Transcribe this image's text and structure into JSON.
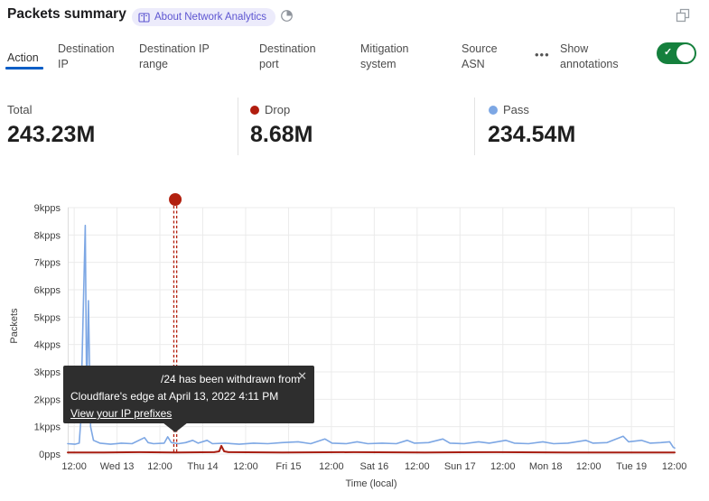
{
  "header": {
    "title": "Packets summary",
    "badge_label": "About Network Analytics"
  },
  "icons": {
    "more_tabs": "•••",
    "close": "✕",
    "check": "✓"
  },
  "tabs": [
    {
      "label": "Action",
      "active": true
    },
    {
      "label": "Destination IP",
      "active": false
    },
    {
      "label": "Destination IP range",
      "active": false
    },
    {
      "label": "Destination port",
      "active": false
    },
    {
      "label": "Mitigation system",
      "active": false
    },
    {
      "label": "Source ASN",
      "active": false
    }
  ],
  "annotations_toggle": {
    "label": "Show annotations",
    "on": true
  },
  "stats": [
    {
      "label": "Total",
      "value": "243.23M",
      "dot_color": null
    },
    {
      "label": "Drop",
      "value": "8.68M",
      "dot_color": "#b11d0f"
    },
    {
      "label": "Pass",
      "value": "234.54M",
      "dot_color": "#7da7e4"
    }
  ],
  "colors": {
    "accent_blue_underline": "#0b5ec6",
    "toggle_green": "#15803d",
    "pass_line": "#7da7e4",
    "drop_line": "#a81e12",
    "annotation_red": "#b2200f",
    "badge_purple": "#5d55d1",
    "gridline": "#ebebeb"
  },
  "chart_data": {
    "type": "line",
    "title": "Packets summary",
    "xlabel": "Time (local)",
    "ylabel": "Packets",
    "y_unit": "kpps",
    "ylim": [
      0,
      9
    ],
    "xlim_hours": [
      0,
      169.9
    ],
    "grid": true,
    "legend_position": "top-stats",
    "y_ticks": [
      {
        "label": "0pps",
        "value": 0
      },
      {
        "label": "1kpps",
        "value": 1
      },
      {
        "label": "2kpps",
        "value": 2
      },
      {
        "label": "3kpps",
        "value": 3
      },
      {
        "label": "4kpps",
        "value": 4
      },
      {
        "label": "5kpps",
        "value": 5
      },
      {
        "label": "6kpps",
        "value": 6
      },
      {
        "label": "7kpps",
        "value": 7
      },
      {
        "label": "8kpps",
        "value": 8
      },
      {
        "label": "9kpps",
        "value": 9
      }
    ],
    "x_ticks": [
      {
        "label": "12:00",
        "hour": 1.8
      },
      {
        "label": "Wed 13",
        "hour": 13.8
      },
      {
        "label": "12:00",
        "hour": 25.8
      },
      {
        "label": "Thu 14",
        "hour": 37.8
      },
      {
        "label": "12:00",
        "hour": 49.8
      },
      {
        "label": "Fri 15",
        "hour": 61.8
      },
      {
        "label": "12:00",
        "hour": 73.8
      },
      {
        "label": "Sat 16",
        "hour": 85.8
      },
      {
        "label": "12:00",
        "hour": 97.8
      },
      {
        "label": "Sun 17",
        "hour": 109.8
      },
      {
        "label": "12:00",
        "hour": 121.8
      },
      {
        "label": "Mon 18",
        "hour": 133.8
      },
      {
        "label": "12:00",
        "hour": 145.8
      },
      {
        "label": "Tue 19",
        "hour": 157.8
      },
      {
        "label": "12:00",
        "hour": 169.8
      }
    ],
    "series": [
      {
        "name": "Pass",
        "color": "#7da7e4",
        "width": 1.6,
        "points": [
          [
            0,
            0.38
          ],
          [
            2,
            0.36
          ],
          [
            3.2,
            0.4
          ],
          [
            3.6,
            1.1
          ],
          [
            4.9,
            8.35
          ],
          [
            5.3,
            1.9
          ],
          [
            5.8,
            5.6
          ],
          [
            6.4,
            1.0
          ],
          [
            7.2,
            0.5
          ],
          [
            9,
            0.4
          ],
          [
            12,
            0.36
          ],
          [
            15,
            0.4
          ],
          [
            18,
            0.38
          ],
          [
            21.5,
            0.6
          ],
          [
            22.5,
            0.42
          ],
          [
            24,
            0.38
          ],
          [
            27,
            0.4
          ],
          [
            28,
            0.63
          ],
          [
            29,
            0.42
          ],
          [
            31,
            0.38
          ],
          [
            33,
            0.42
          ],
          [
            35,
            0.5
          ],
          [
            36.5,
            0.4
          ],
          [
            39,
            0.5
          ],
          [
            40.5,
            0.38
          ],
          [
            44,
            0.4
          ],
          [
            48,
            0.36
          ],
          [
            52,
            0.4
          ],
          [
            56,
            0.38
          ],
          [
            60,
            0.42
          ],
          [
            64.5,
            0.45
          ],
          [
            68,
            0.38
          ],
          [
            72,
            0.55
          ],
          [
            74,
            0.4
          ],
          [
            78,
            0.38
          ],
          [
            81,
            0.45
          ],
          [
            84,
            0.38
          ],
          [
            88,
            0.4
          ],
          [
            92,
            0.38
          ],
          [
            95,
            0.5
          ],
          [
            97,
            0.4
          ],
          [
            101,
            0.42
          ],
          [
            105,
            0.55
          ],
          [
            107,
            0.4
          ],
          [
            111,
            0.38
          ],
          [
            115,
            0.45
          ],
          [
            118,
            0.4
          ],
          [
            122.6,
            0.5
          ],
          [
            125,
            0.4
          ],
          [
            129,
            0.38
          ],
          [
            133,
            0.45
          ],
          [
            136,
            0.38
          ],
          [
            140,
            0.4
          ],
          [
            145,
            0.5
          ],
          [
            147,
            0.4
          ],
          [
            151,
            0.42
          ],
          [
            155.5,
            0.65
          ],
          [
            157,
            0.45
          ],
          [
            160.6,
            0.5
          ],
          [
            163,
            0.4
          ],
          [
            166,
            0.42
          ],
          [
            168.5,
            0.45
          ],
          [
            169.5,
            0.25
          ],
          [
            169.9,
            0.22
          ]
        ]
      },
      {
        "name": "Drop",
        "color": "#a81e12",
        "width": 2,
        "points": [
          [
            0,
            0.06
          ],
          [
            10,
            0.06
          ],
          [
            20,
            0.07
          ],
          [
            30,
            0.06
          ],
          [
            41,
            0.07
          ],
          [
            42.4,
            0.1
          ],
          [
            43,
            0.3
          ],
          [
            43.8,
            0.1
          ],
          [
            45,
            0.07
          ],
          [
            60,
            0.06
          ],
          [
            80,
            0.07
          ],
          [
            100,
            0.06
          ],
          [
            120,
            0.07
          ],
          [
            140,
            0.06
          ],
          [
            160,
            0.06
          ],
          [
            169.9,
            0.06
          ]
        ]
      }
    ],
    "annotation": {
      "hour": 30.1,
      "color": "#b2200f",
      "tooltip": {
        "line1": "/24 has been withdrawn from",
        "line2": "Cloudflare's edge at April 13, 2022 4:11 PM",
        "link": "View your IP prefixes"
      }
    }
  }
}
